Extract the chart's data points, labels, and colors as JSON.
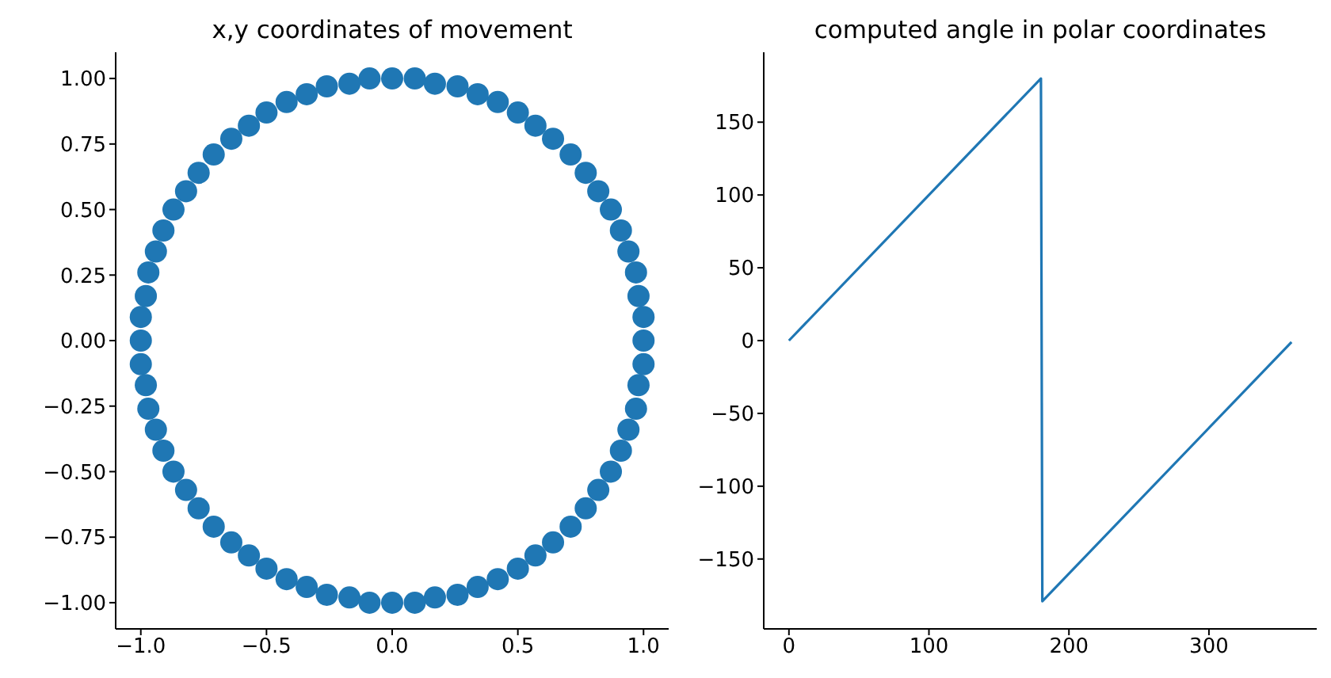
{
  "chart_data": [
    {
      "type": "scatter",
      "title": "x,y coordinates of movement",
      "color": "#1f77b4",
      "marker": "circle",
      "x": [
        1,
        1,
        0.98,
        0.97,
        0.94,
        0.91,
        0.87,
        0.82,
        0.77,
        0.71,
        0.64,
        0.57,
        0.5,
        0.42,
        0.34,
        0.26,
        0.17,
        0.09,
        0,
        -0.09,
        -0.17,
        -0.26,
        -0.34,
        -0.42,
        -0.5,
        -0.57,
        -0.64,
        -0.71,
        -0.77,
        -0.82,
        -0.87,
        -0.91,
        -0.94,
        -0.97,
        -0.98,
        -1,
        -1,
        -1,
        -0.98,
        -0.97,
        -0.94,
        -0.91,
        -0.87,
        -0.82,
        -0.77,
        -0.71,
        -0.64,
        -0.57,
        -0.5,
        -0.42,
        -0.34,
        -0.26,
        -0.17,
        -0.09,
        0,
        0.09,
        0.17,
        0.26,
        0.34,
        0.42,
        0.5,
        0.57,
        0.64,
        0.71,
        0.77,
        0.82,
        0.87,
        0.91,
        0.94,
        0.97,
        0.98,
        1
      ],
      "values": [
        0,
        0.09,
        0.17,
        0.26,
        0.34,
        0.42,
        0.5,
        0.57,
        0.64,
        0.71,
        0.77,
        0.82,
        0.87,
        0.91,
        0.94,
        0.97,
        0.98,
        1,
        1,
        1,
        0.98,
        0.97,
        0.94,
        0.91,
        0.87,
        0.82,
        0.77,
        0.71,
        0.64,
        0.57,
        0.5,
        0.42,
        0.34,
        0.26,
        0.17,
        0.09,
        0,
        -0.09,
        -0.17,
        -0.26,
        -0.34,
        -0.42,
        -0.5,
        -0.57,
        -0.64,
        -0.71,
        -0.77,
        -0.82,
        -0.87,
        -0.91,
        -0.94,
        -0.97,
        -0.98,
        -1,
        -1,
        -1,
        -0.98,
        -0.97,
        -0.94,
        -0.91,
        -0.87,
        -0.82,
        -0.77,
        -0.71,
        -0.64,
        -0.57,
        -0.5,
        -0.42,
        -0.34,
        -0.26,
        -0.17,
        -0.09
      ],
      "xlim": [
        -1.1,
        1.1
      ],
      "ylim": [
        -1.1,
        1.1
      ],
      "xticks": [
        {
          "value": -1,
          "label": "−1.0"
        },
        {
          "value": -0.5,
          "label": "−0.5"
        },
        {
          "value": 0,
          "label": "0.0"
        },
        {
          "value": 0.5,
          "label": "0.5"
        },
        {
          "value": 1,
          "label": "1.0"
        }
      ],
      "yticks": [
        {
          "value": -1,
          "label": "−1.00"
        },
        {
          "value": -0.75,
          "label": "−0.75"
        },
        {
          "value": -0.5,
          "label": "−0.50"
        },
        {
          "value": -0.25,
          "label": "−0.25"
        },
        {
          "value": 0,
          "label": "0.00"
        },
        {
          "value": 0.25,
          "label": "0.25"
        },
        {
          "value": 0.5,
          "label": "0.50"
        },
        {
          "value": 0.75,
          "label": "0.75"
        },
        {
          "value": 1,
          "label": "1.00"
        }
      ]
    },
    {
      "type": "line",
      "title": "computed angle in polar coordinates",
      "color": "#1f77b4",
      "x": [
        0,
        180,
        181,
        359
      ],
      "values": [
        0,
        180,
        -179,
        -1
      ],
      "xlim": [
        -18,
        377
      ],
      "ylim": [
        -198,
        198
      ],
      "xticks": [
        0,
        100,
        200,
        300
      ],
      "yticks": [
        {
          "value": -150,
          "label": "−150"
        },
        {
          "value": -100,
          "label": "−100"
        },
        {
          "value": -50,
          "label": "−50"
        },
        0,
        50,
        100,
        150
      ]
    }
  ]
}
